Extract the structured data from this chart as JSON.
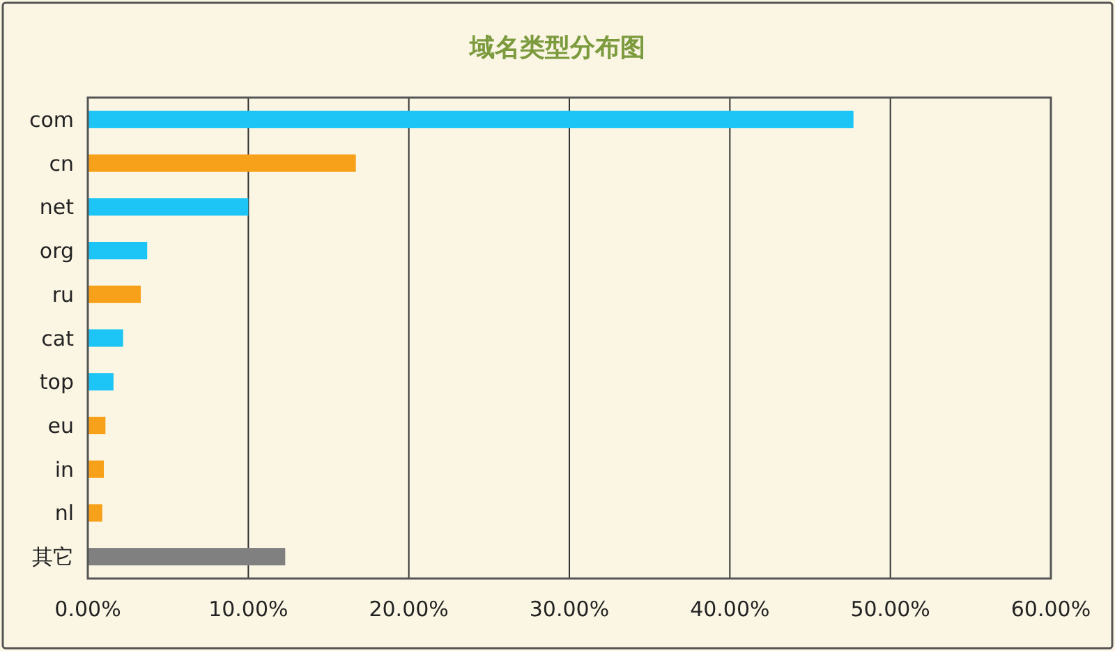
{
  "chart_data": {
    "type": "bar",
    "title": "域名类型分布图",
    "orientation": "horizontal",
    "categories": [
      "com",
      "cn",
      "net",
      "org",
      "ru",
      "cat",
      "top",
      "eu",
      "in",
      "nl",
      "其它"
    ],
    "values": [
      47.7,
      16.7,
      10.0,
      3.7,
      3.3,
      2.2,
      1.6,
      1.1,
      1.0,
      0.9,
      12.3
    ],
    "colors": [
      "#1cc5f5",
      "#f7a11a",
      "#1cc5f5",
      "#1cc5f5",
      "#f7a11a",
      "#1cc5f5",
      "#1cc5f5",
      "#f7a11a",
      "#f7a11a",
      "#f7a11a",
      "#808080"
    ],
    "xlim": [
      0,
      60
    ],
    "xticks": [
      {
        "value": 0,
        "label": "0.00%"
      },
      {
        "value": 10,
        "label": "10.00%"
      },
      {
        "value": 20,
        "label": "20.00%"
      },
      {
        "value": 30,
        "label": "30.00%"
      },
      {
        "value": 40,
        "label": "40.00%"
      },
      {
        "value": 50,
        "label": "50.00%"
      },
      {
        "value": 60,
        "label": "60.00%"
      }
    ],
    "grid": "x"
  }
}
